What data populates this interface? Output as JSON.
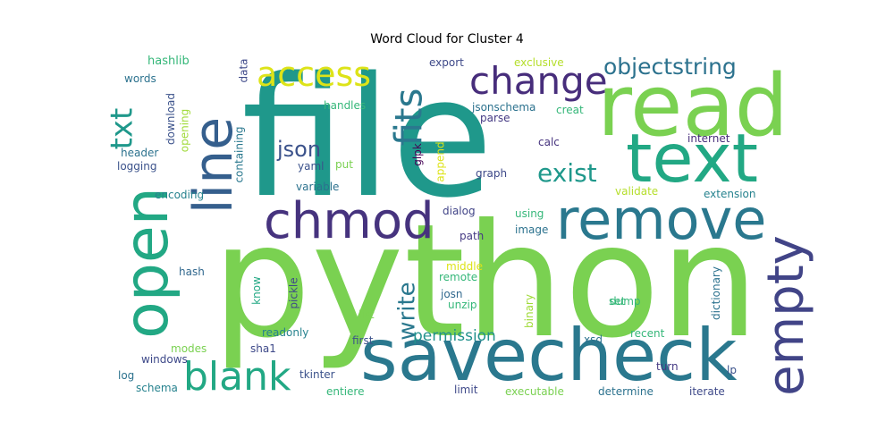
{
  "title": "Word Cloud for Cluster 4",
  "words": [
    {
      "text": "python",
      "color": "#7ad151"
    },
    {
      "text": "file",
      "color": "#1f988b"
    },
    {
      "text": "savecheck",
      "color": "#2a788e"
    },
    {
      "text": "read",
      "color": "#7ad151"
    },
    {
      "text": "text",
      "color": "#22a884"
    },
    {
      "text": "remove",
      "color": "#2a788e"
    },
    {
      "text": "open",
      "color": "#22a884"
    },
    {
      "text": "line",
      "color": "#355f8d"
    },
    {
      "text": "chmod",
      "color": "#46337e"
    },
    {
      "text": "empty",
      "color": "#414487"
    },
    {
      "text": "change",
      "color": "#472d7b"
    },
    {
      "text": "fits",
      "color": "#2a788e"
    },
    {
      "text": "blank",
      "color": "#22a884"
    },
    {
      "text": "access",
      "color": "#dde318"
    },
    {
      "text": "txt",
      "color": "#1f988b"
    },
    {
      "text": "objectstring",
      "color": "#2c728e"
    },
    {
      "text": "exist",
      "color": "#1f988b"
    },
    {
      "text": "write",
      "color": "#2a788e"
    },
    {
      "text": "json",
      "color": "#3b528b"
    },
    {
      "text": "permission",
      "color": "#21918c"
    },
    {
      "text": "hashlib",
      "color": "#35b779"
    },
    {
      "text": "export",
      "color": "#3e4989"
    },
    {
      "text": "exclusive",
      "color": "#b5de2b"
    },
    {
      "text": "data",
      "color": "#3e4989"
    },
    {
      "text": "words",
      "color": "#2c728e"
    },
    {
      "text": "download",
      "color": "#3b528b"
    },
    {
      "text": "opening",
      "color": "#a0da39"
    },
    {
      "text": "handles",
      "color": "#35b779"
    },
    {
      "text": "jsonschema",
      "color": "#2c728e"
    },
    {
      "text": "parse",
      "color": "#443983"
    },
    {
      "text": "creat",
      "color": "#35b779"
    },
    {
      "text": "header",
      "color": "#2c728e"
    },
    {
      "text": "logging",
      "color": "#3b528b"
    },
    {
      "text": "containing",
      "color": "#2a788e"
    },
    {
      "text": "yaml",
      "color": "#3b528b"
    },
    {
      "text": "put",
      "color": "#7ad151"
    },
    {
      "text": "glpk",
      "color": "#440154"
    },
    {
      "text": "append",
      "color": "#dde318"
    },
    {
      "text": "calc",
      "color": "#46337e"
    },
    {
      "text": "internet",
      "color": "#472d7b"
    },
    {
      "text": "graph",
      "color": "#3e4989"
    },
    {
      "text": "encoding",
      "color": "#26828e"
    },
    {
      "text": "variable",
      "color": "#2c728e"
    },
    {
      "text": "validate",
      "color": "#b5de2b"
    },
    {
      "text": "extension",
      "color": "#26828e"
    },
    {
      "text": "dialog",
      "color": "#414487"
    },
    {
      "text": "using",
      "color": "#35b779"
    },
    {
      "text": "path",
      "color": "#443983"
    },
    {
      "text": "image",
      "color": "#2c728e"
    },
    {
      "text": "middle",
      "color": "#dde318"
    },
    {
      "text": "hash",
      "color": "#31688e"
    },
    {
      "text": "know",
      "color": "#22a884"
    },
    {
      "text": "pickle",
      "color": "#3e4989"
    },
    {
      "text": "remote",
      "color": "#35b779"
    },
    {
      "text": "binary",
      "color": "#a0da39"
    },
    {
      "text": "dictionary",
      "color": "#2c728e"
    },
    {
      "text": "set",
      "color": "#35b779"
    },
    {
      "text": "josn",
      "color": "#31688e"
    },
    {
      "text": "unzip",
      "color": "#35b779"
    },
    {
      "text": "dump",
      "color": "#35b779"
    },
    {
      "text": "list",
      "color": "#7ad151"
    },
    {
      "text": "readonly",
      "color": "#26828e"
    },
    {
      "text": "modes",
      "color": "#7ad151"
    },
    {
      "text": "sha1",
      "color": "#3e4989"
    },
    {
      "text": "first",
      "color": "#3b528b"
    },
    {
      "text": "xsd",
      "color": "#2c728e"
    },
    {
      "text": "recent",
      "color": "#35b779"
    },
    {
      "text": "windows",
      "color": "#3e4989"
    },
    {
      "text": "log",
      "color": "#2c728e"
    },
    {
      "text": "schema",
      "color": "#26828e"
    },
    {
      "text": "tkinter",
      "color": "#3b528b"
    },
    {
      "text": "turn",
      "color": "#443983"
    },
    {
      "text": "lp",
      "color": "#3b528b"
    },
    {
      "text": "entiere",
      "color": "#35b779"
    },
    {
      "text": "limit",
      "color": "#3e4989"
    },
    {
      "text": "executable",
      "color": "#7ad151"
    },
    {
      "text": "determine",
      "color": "#2c728e"
    },
    {
      "text": "iterate",
      "color": "#3e4989"
    }
  ]
}
